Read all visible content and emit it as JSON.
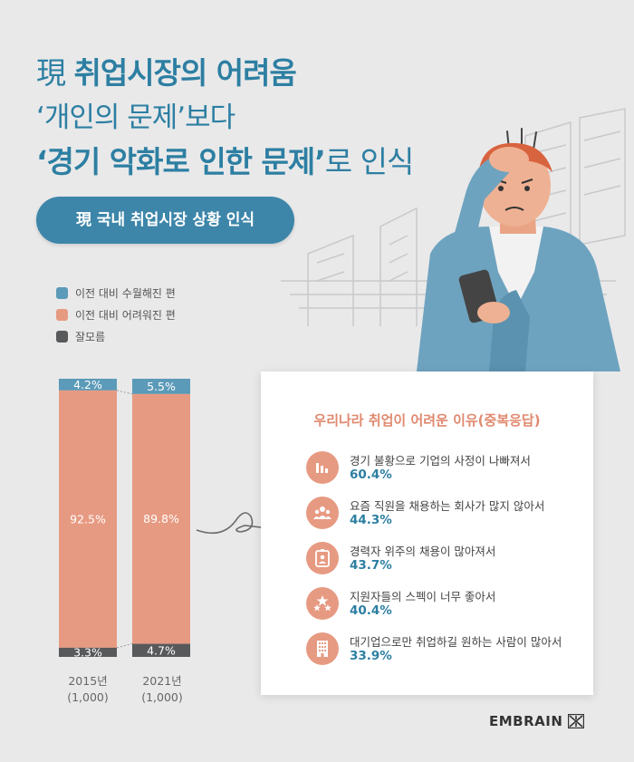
{
  "headline": {
    "line1_prefix": "現",
    "line1_bold": "취업시장의 어려움",
    "line2": "‘개인의 문제’보다",
    "line3_bold": "‘경기 악화로 인한 문제’",
    "line3_rest": "로 인식"
  },
  "subtitle_pill": "現 국내 취업시장 상황 인식",
  "colors": {
    "improved": "#5b9ab8",
    "worse": "#e79a82",
    "unknown": "#58595b",
    "accent": "#2d7fa2"
  },
  "chart_data": {
    "type": "bar",
    "stacked": true,
    "categories": [
      "2015년\n(1,000)",
      "2021년\n(1,000)"
    ],
    "series": [
      {
        "name": "이전 대비 수월해진 편",
        "values": [
          4.2,
          5.5
        ],
        "labels": [
          "4.2%",
          "5.5%"
        ]
      },
      {
        "name": "이전 대비 어려워진 편",
        "values": [
          92.5,
          89.8
        ],
        "labels": [
          "92.5%",
          "89.8%"
        ]
      },
      {
        "name": "잘모름",
        "values": [
          3.3,
          4.7
        ],
        "labels": [
          "3.3%",
          "4.7%"
        ]
      }
    ],
    "legend": "top-left",
    "grid": false
  },
  "reasons_card": {
    "title": "우리나라 취업이 어려운 이유(중복응답)",
    "items": [
      {
        "text": "경기 불황으로 기업의 사정이 나빠져서",
        "value": "60.4%",
        "icon": "bar-chart-icon"
      },
      {
        "text": "요즘 직원을 채용하는 회사가 많지 않아서",
        "value": "44.3%",
        "icon": "people-icon"
      },
      {
        "text": "경력자 위주의 채용이 많아져서",
        "value": "43.7%",
        "icon": "id-badge-icon"
      },
      {
        "text": "지원자들의 스펙이 너무 좋아서",
        "value": "40.4%",
        "icon": "stars-icon"
      },
      {
        "text": "대기업으로만 취업하길 원하는 사람이 많아서",
        "value": "33.9%",
        "icon": "building-icon"
      }
    ]
  },
  "brand": "EMBRAIN"
}
